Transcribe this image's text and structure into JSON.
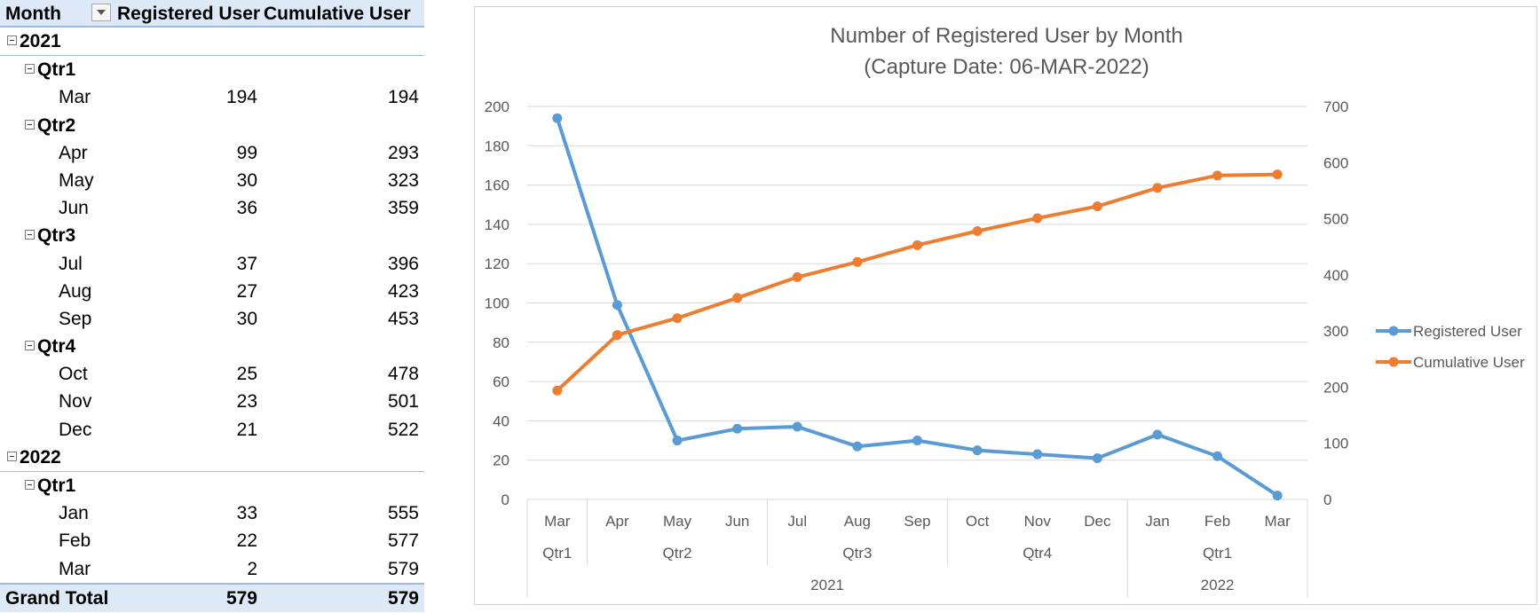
{
  "pivot": {
    "headers": {
      "month": "Month",
      "registered": "Registered User",
      "cumulative": "Cumulative User"
    },
    "rows": [
      {
        "kind": "year",
        "label": "2021"
      },
      {
        "kind": "qtr",
        "label": "Qtr1"
      },
      {
        "kind": "month",
        "label": "Mar",
        "registered": "194",
        "cumulative": "194"
      },
      {
        "kind": "qtr",
        "label": "Qtr2"
      },
      {
        "kind": "month",
        "label": "Apr",
        "registered": "99",
        "cumulative": "293"
      },
      {
        "kind": "month",
        "label": "May",
        "registered": "30",
        "cumulative": "323"
      },
      {
        "kind": "month",
        "label": "Jun",
        "registered": "36",
        "cumulative": "359"
      },
      {
        "kind": "qtr",
        "label": "Qtr3"
      },
      {
        "kind": "month",
        "label": "Jul",
        "registered": "37",
        "cumulative": "396"
      },
      {
        "kind": "month",
        "label": "Aug",
        "registered": "27",
        "cumulative": "423"
      },
      {
        "kind": "month",
        "label": "Sep",
        "registered": "30",
        "cumulative": "453"
      },
      {
        "kind": "qtr",
        "label": "Qtr4"
      },
      {
        "kind": "month",
        "label": "Oct",
        "registered": "25",
        "cumulative": "478"
      },
      {
        "kind": "month",
        "label": "Nov",
        "registered": "23",
        "cumulative": "501"
      },
      {
        "kind": "month",
        "label": "Dec",
        "registered": "21",
        "cumulative": "522"
      },
      {
        "kind": "year",
        "label": "2022"
      },
      {
        "kind": "qtr",
        "label": "Qtr1"
      },
      {
        "kind": "month",
        "label": "Jan",
        "registered": "33",
        "cumulative": "555"
      },
      {
        "kind": "month",
        "label": "Feb",
        "registered": "22",
        "cumulative": "577"
      },
      {
        "kind": "month",
        "label": "Mar",
        "registered": "2",
        "cumulative": "579"
      }
    ],
    "grand_total": {
      "label": "Grand Total",
      "registered": "579",
      "cumulative": "579"
    }
  },
  "chart_data": {
    "type": "line",
    "title": "Number of Registered User by Month",
    "subtitle": "(Capture Date: 06-MAR-2022)",
    "categories": [
      "Mar",
      "Apr",
      "May",
      "Jun",
      "Jul",
      "Aug",
      "Sep",
      "Oct",
      "Nov",
      "Dec",
      "Jan",
      "Feb",
      "Mar"
    ],
    "category_groups": {
      "quarters": [
        {
          "label": "Qtr1",
          "count": 1
        },
        {
          "label": "Qtr2",
          "count": 3
        },
        {
          "label": "Qtr3",
          "count": 3
        },
        {
          "label": "Qtr4",
          "count": 3
        },
        {
          "label": "Qtr1",
          "count": 3
        }
      ],
      "years": [
        {
          "label": "2021",
          "count": 10
        },
        {
          "label": "2022",
          "count": 3
        }
      ]
    },
    "series": [
      {
        "name": "Registered User",
        "axis": "left",
        "color": "#5b9bd5",
        "values": [
          194,
          99,
          30,
          36,
          37,
          27,
          30,
          25,
          23,
          21,
          33,
          22,
          2
        ]
      },
      {
        "name": "Cumulative User",
        "axis": "right",
        "color": "#ed7d31",
        "values": [
          194,
          293,
          323,
          359,
          396,
          423,
          453,
          478,
          501,
          522,
          555,
          577,
          579
        ]
      }
    ],
    "y_left": {
      "min": 0,
      "max": 200,
      "step": 20
    },
    "y_right": {
      "min": 0,
      "max": 700,
      "step": 100
    },
    "grid": true,
    "legend": "right"
  }
}
